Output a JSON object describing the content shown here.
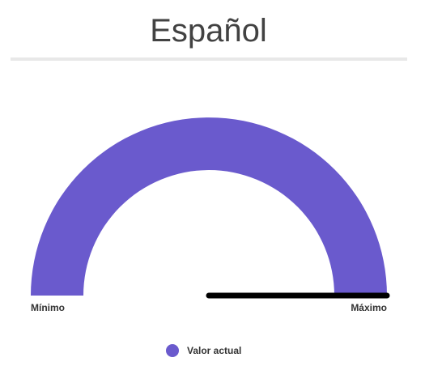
{
  "title": "Español",
  "chart_data": {
    "type": "gauge",
    "min": 0,
    "max": 100,
    "value": 100,
    "min_label": "Mínimo",
    "max_label": "Máximo",
    "series": [
      {
        "name": "Valor actual",
        "color": "#6a5acd"
      }
    ],
    "needle_color": "#000000",
    "legend": "bottom-center"
  }
}
